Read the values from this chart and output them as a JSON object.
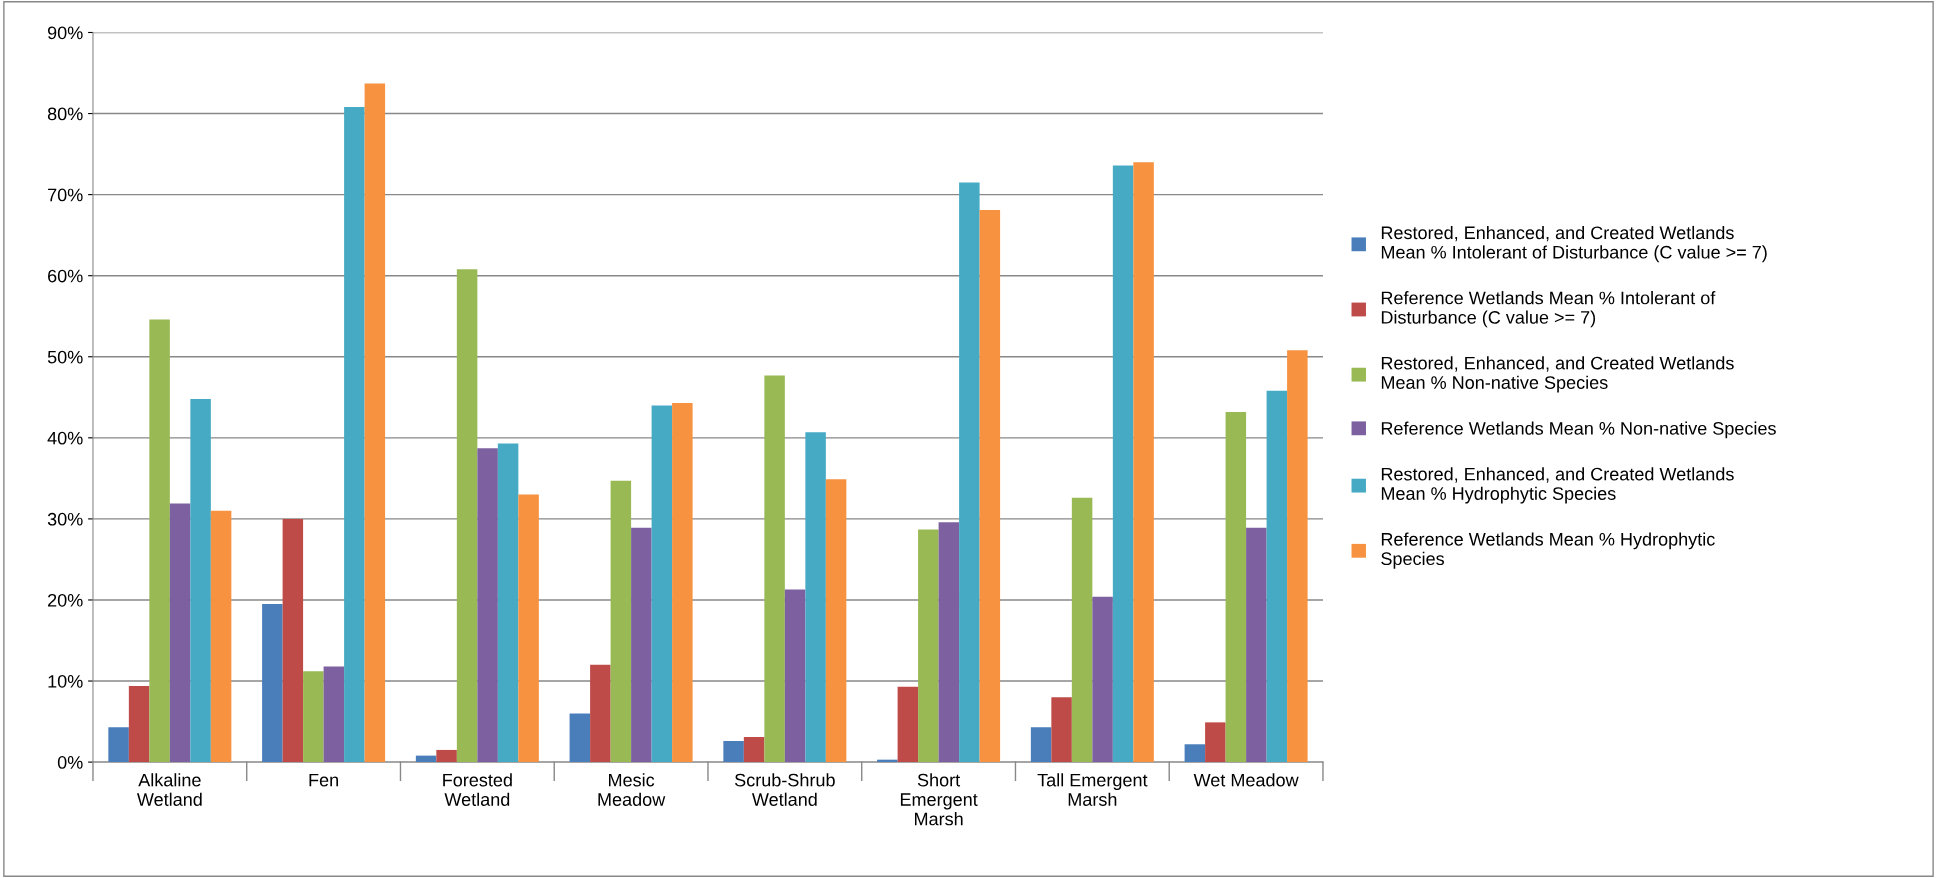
{
  "chart_data": {
    "type": "bar",
    "categories": [
      "Alkaline\nWetland",
      "Fen",
      "Forested\nWetland",
      "Mesic\nMeadow",
      "Scrub-Shrub\nWetland",
      "Short\nEmergent\nMarsh",
      "Tall Emergent\nMarsh",
      "Wet Meadow"
    ],
    "series": [
      {
        "name": "Restored, Enhanced, and Created Wetlands\nMean % Intolerant of Disturbance (C value >= 7)",
        "color": "#4a7ebb",
        "values": [
          4.3,
          19.5,
          0.8,
          6.0,
          2.6,
          0.3,
          4.3,
          2.2
        ]
      },
      {
        "name": "Reference Wetlands Mean % Intolerant of\nDisturbance (C value >= 7)",
        "color": "#be4b48",
        "values": [
          9.4,
          30.0,
          1.5,
          12.0,
          3.1,
          9.3,
          8.0,
          4.9
        ]
      },
      {
        "name": "Restored, Enhanced, and Created Wetlands\nMean % Non-native Species",
        "color": "#98b954",
        "values": [
          54.6,
          11.2,
          60.8,
          34.7,
          47.7,
          28.7,
          32.6,
          43.2
        ]
      },
      {
        "name": "Reference Wetlands Mean % Non-native Species",
        "color": "#7d60a0",
        "values": [
          31.9,
          11.8,
          38.7,
          28.9,
          21.3,
          29.6,
          20.4,
          28.9
        ]
      },
      {
        "name": "Restored, Enhanced, and Created Wetlands\nMean % Hydrophytic Species",
        "color": "#46aac5",
        "values": [
          44.8,
          80.8,
          39.3,
          44.0,
          40.7,
          71.5,
          73.6,
          45.8
        ]
      },
      {
        "name": "Reference Wetlands Mean % Hydrophytic\nSpecies",
        "color": "#f69240",
        "values": [
          31.0,
          83.7,
          33.0,
          44.3,
          34.9,
          68.1,
          74.0,
          50.8
        ]
      }
    ],
    "ylim": [
      0,
      90
    ],
    "yticks": [
      {
        "value": 0,
        "label": "0%"
      },
      {
        "value": 10,
        "label": "10%"
      },
      {
        "value": 20,
        "label": "20%"
      },
      {
        "value": 30,
        "label": "30%"
      },
      {
        "value": 40,
        "label": "40%"
      },
      {
        "value": 50,
        "label": "50%"
      },
      {
        "value": 60,
        "label": "60%"
      },
      {
        "value": 70,
        "label": "70%"
      },
      {
        "value": 80,
        "label": "80%"
      },
      {
        "value": 90,
        "label": "90%"
      }
    ],
    "grid": "y",
    "legend": "right"
  }
}
